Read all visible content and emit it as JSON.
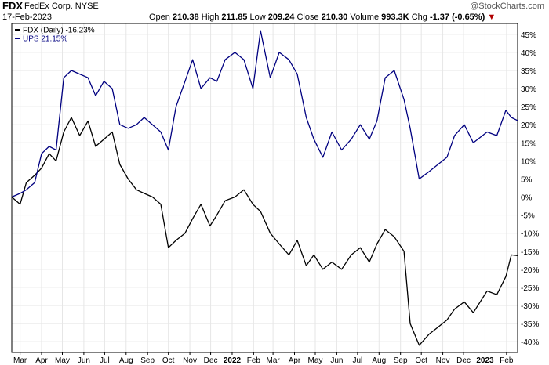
{
  "header": {
    "ticker": "FDX",
    "company": "FedEx Corp. NYSE",
    "date": "17-Feb-2023",
    "watermark": "@StockCharts.com",
    "open_label": "Open",
    "open": "210.38",
    "high_label": "High",
    "high": "211.85",
    "low_label": "Low",
    "low": "209.24",
    "close_label": "Close",
    "close": "210.30",
    "volume_label": "Volume",
    "volume": "993.3K",
    "chg_label": "Chg",
    "chg": "-1.37 (-0.65%)",
    "chg_marker": "▼"
  },
  "colors": {
    "fdx": "#000000",
    "ups": "#000080",
    "zero_line": "#000000",
    "grid": "#e6e6e6",
    "down": "#b00000"
  },
  "chart_data": {
    "type": "line",
    "y_unit": "%",
    "ylim": [
      -43,
      48
    ],
    "y_ticks": [
      45,
      40,
      35,
      30,
      25,
      20,
      15,
      10,
      5,
      0,
      -5,
      -10,
      -15,
      -20,
      -25,
      -30,
      -35,
      -40
    ],
    "y_tick_labels": [
      "45%",
      "40%",
      "35%",
      "30%",
      "25%",
      "20%",
      "15%",
      "10%",
      "5%",
      "0%",
      "-5%",
      "-10%",
      "-15%",
      "-20%",
      "-25%",
      "-30%",
      "-35%",
      "-40%"
    ],
    "x_range": [
      "2021-02-17",
      "2023-02-17"
    ],
    "x_ticks": [
      "2021-03-01",
      "2021-04-01",
      "2021-05-01",
      "2021-06-01",
      "2021-07-01",
      "2021-08-01",
      "2021-09-01",
      "2021-10-01",
      "2021-11-01",
      "2021-12-01",
      "2022-01-01",
      "2022-02-01",
      "2022-03-01",
      "2022-04-01",
      "2022-05-01",
      "2022-06-01",
      "2022-07-01",
      "2022-08-01",
      "2022-09-01",
      "2022-10-01",
      "2022-11-01",
      "2022-12-01",
      "2023-01-01",
      "2023-02-01"
    ],
    "x_tick_labels": [
      "Mar",
      "Apr",
      "May",
      "Jun",
      "Jul",
      "Aug",
      "Sep",
      "Oct",
      "Nov",
      "Dec",
      "2022",
      "Feb",
      "Mar",
      "Apr",
      "May",
      "Jun",
      "Jul",
      "Aug",
      "Sep",
      "Oct",
      "Nov",
      "Dec",
      "2023",
      "Feb"
    ],
    "x_tick_bold": [
      false,
      false,
      false,
      false,
      false,
      false,
      false,
      false,
      false,
      false,
      true,
      false,
      false,
      false,
      false,
      false,
      false,
      false,
      false,
      false,
      false,
      false,
      true,
      false
    ],
    "legend_position": "top-left",
    "series": [
      {
        "name": "FDX (Daily) -16.23%",
        "x": [
          "2021-02-17",
          "2021-03-01",
          "2021-03-10",
          "2021-03-22",
          "2021-04-01",
          "2021-04-12",
          "2021-04-22",
          "2021-05-03",
          "2021-05-14",
          "2021-05-26",
          "2021-06-07",
          "2021-06-18",
          "2021-06-30",
          "2021-07-12",
          "2021-07-23",
          "2021-08-04",
          "2021-08-16",
          "2021-08-27",
          "2021-09-08",
          "2021-09-20",
          "2021-10-01",
          "2021-10-12",
          "2021-10-25",
          "2021-11-05",
          "2021-11-17",
          "2021-11-30",
          "2021-12-10",
          "2021-12-22",
          "2022-01-05",
          "2022-01-18",
          "2022-01-31",
          "2022-02-11",
          "2022-02-25",
          "2022-03-10",
          "2022-03-24",
          "2022-04-05",
          "2022-04-18",
          "2022-04-29",
          "2022-05-12",
          "2022-05-25",
          "2022-06-08",
          "2022-06-22",
          "2022-07-05",
          "2022-07-18",
          "2022-07-29",
          "2022-08-10",
          "2022-08-23",
          "2022-09-06",
          "2022-09-15",
          "2022-09-28",
          "2022-10-12",
          "2022-10-25",
          "2022-11-07",
          "2022-11-18",
          "2022-12-02",
          "2022-12-15",
          "2023-01-04",
          "2023-01-18",
          "2023-01-31",
          "2023-02-08",
          "2023-02-17"
        ],
        "y": [
          0,
          -2,
          4,
          6,
          8,
          12,
          10,
          18,
          22,
          17,
          21,
          14,
          16,
          18,
          9,
          5,
          2,
          1,
          0,
          -2,
          -14,
          -12,
          -10,
          -6,
          -2,
          -8,
          -5,
          -1,
          0,
          2,
          -2,
          -4,
          -10,
          -13,
          -16,
          -12,
          -19,
          -16,
          -20,
          -18,
          -20,
          -16,
          -14,
          -18,
          -13,
          -9,
          -11,
          -15,
          -35,
          -41,
          -38,
          -36,
          -34,
          -31,
          -29,
          -32,
          -26,
          -27,
          -22,
          -16,
          -16.23
        ]
      },
      {
        "name": "UPS 21.15%",
        "x": [
          "2021-02-17",
          "2021-03-01",
          "2021-03-10",
          "2021-03-22",
          "2021-04-01",
          "2021-04-12",
          "2021-04-22",
          "2021-05-03",
          "2021-05-14",
          "2021-05-26",
          "2021-06-07",
          "2021-06-18",
          "2021-06-30",
          "2021-07-12",
          "2021-07-23",
          "2021-08-04",
          "2021-08-16",
          "2021-08-27",
          "2021-09-08",
          "2021-09-20",
          "2021-10-01",
          "2021-10-12",
          "2021-10-25",
          "2021-11-05",
          "2021-11-17",
          "2021-11-30",
          "2021-12-10",
          "2021-12-22",
          "2022-01-05",
          "2022-01-18",
          "2022-01-31",
          "2022-02-11",
          "2022-02-25",
          "2022-03-10",
          "2022-03-24",
          "2022-04-05",
          "2022-04-18",
          "2022-04-29",
          "2022-05-12",
          "2022-05-25",
          "2022-06-08",
          "2022-06-22",
          "2022-07-05",
          "2022-07-18",
          "2022-07-29",
          "2022-08-10",
          "2022-08-23",
          "2022-09-06",
          "2022-09-15",
          "2022-09-28",
          "2022-10-12",
          "2022-10-25",
          "2022-11-07",
          "2022-11-18",
          "2022-12-02",
          "2022-12-15",
          "2023-01-04",
          "2023-01-18",
          "2023-01-31",
          "2023-02-08",
          "2023-02-17"
        ],
        "y": [
          0,
          1,
          2,
          4,
          12,
          14,
          13,
          33,
          35,
          34,
          33,
          28,
          32,
          30,
          20,
          19,
          20,
          22,
          20,
          18,
          13,
          25,
          32,
          38,
          30,
          33,
          32,
          38,
          40,
          38,
          30,
          46,
          33,
          40,
          38,
          34,
          22,
          16,
          11,
          18,
          13,
          16,
          20,
          16,
          21,
          33,
          35,
          27,
          19,
          5,
          7,
          9,
          11,
          17,
          20,
          15,
          18,
          17,
          24,
          22,
          21.15
        ]
      }
    ]
  }
}
